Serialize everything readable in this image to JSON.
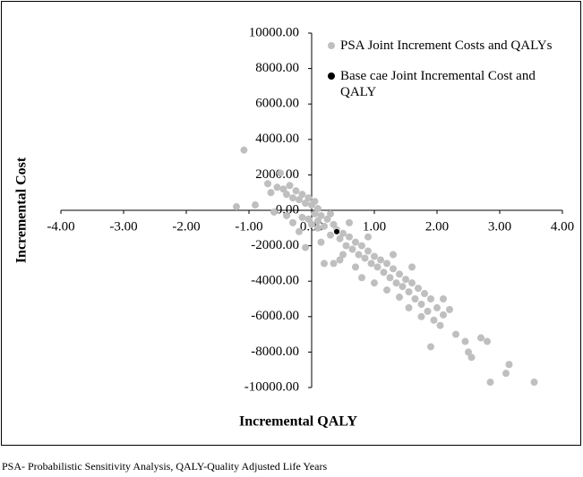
{
  "chart_data": {
    "type": "scatter",
    "xlabel": "Incremental QALY",
    "ylabel": "Incremental Cost",
    "xlim": [
      -4,
      4
    ],
    "ylim": [
      -10000,
      10000
    ],
    "xticks": [
      {
        "value": -4,
        "label": "-4.00"
      },
      {
        "value": -3,
        "label": "-3.00"
      },
      {
        "value": -2,
        "label": "-2.00"
      },
      {
        "value": -1,
        "label": "-1.00"
      },
      {
        "value": 0,
        "label": "0.00"
      },
      {
        "value": 1,
        "label": "1.00"
      },
      {
        "value": 2,
        "label": "2.00"
      },
      {
        "value": 3,
        "label": "3.00"
      },
      {
        "value": 4,
        "label": "4.00"
      }
    ],
    "yticks": [
      {
        "value": 10000,
        "label": "10000.00"
      },
      {
        "value": 8000,
        "label": "8000.00"
      },
      {
        "value": 6000,
        "label": "6000.00"
      },
      {
        "value": 4000,
        "label": "4000.00"
      },
      {
        "value": 2000,
        "label": "2000.00"
      },
      {
        "value": 0,
        "label": "0.00"
      },
      {
        "value": -2000,
        "label": "-2000.00"
      },
      {
        "value": -4000,
        "label": "-4000.00"
      },
      {
        "value": -6000,
        "label": "-6000.00"
      },
      {
        "value": -8000,
        "label": "-8000.00"
      },
      {
        "value": -10000,
        "label": "-10000.00"
      }
    ],
    "series": [
      {
        "name": "PSA Joint Increment Costs and QALYs",
        "color": "#bfbfbf",
        "x": [
          -1.08,
          -1.2,
          -0.9,
          -0.7,
          -0.65,
          -0.55,
          -0.5,
          -0.45,
          -0.4,
          -0.35,
          -0.3,
          -0.25,
          -0.2,
          -0.15,
          -0.1,
          -0.05,
          0.0,
          0.05,
          0.1,
          -0.6,
          -0.4,
          -0.3,
          -0.2,
          -0.1,
          -0.15,
          0.0,
          0.05,
          0.1,
          0.15,
          0.2,
          0.25,
          0.3,
          0.35,
          0.4,
          0.45,
          0.5,
          0.55,
          0.6,
          0.65,
          0.7,
          0.75,
          0.8,
          0.85,
          0.9,
          0.95,
          1.0,
          1.05,
          1.1,
          1.15,
          1.2,
          1.25,
          1.3,
          1.35,
          1.4,
          1.45,
          1.5,
          1.55,
          1.6,
          1.65,
          1.7,
          1.75,
          1.8,
          1.85,
          1.9,
          1.95,
          2.0,
          2.05,
          2.1,
          2.2,
          2.3,
          2.45,
          2.5,
          2.55,
          2.7,
          2.8,
          2.85,
          3.1,
          3.15,
          3.55,
          1.9,
          1.2,
          0.2,
          0.35,
          0.7,
          1.4,
          1.0,
          0.5,
          0.15,
          0.6,
          0.9,
          1.3,
          1.6,
          2.1,
          0.3,
          0.45,
          1.75,
          1.55,
          0.8,
          0.1,
          -0.05
        ],
        "y": [
          3400,
          200,
          300,
          1500,
          1000,
          1300,
          2100,
          1200,
          900,
          1400,
          700,
          1100,
          600,
          900,
          400,
          700,
          300,
          500,
          100,
          -100,
          -300,
          -700,
          -1200,
          -2100,
          -400,
          -800,
          -200,
          -600,
          -300,
          -900,
          -500,
          -1400,
          -800,
          -1100,
          -1600,
          -1300,
          -2000,
          -1500,
          -2200,
          -1800,
          -2500,
          -2000,
          -2700,
          -2300,
          -3000,
          -2600,
          -3200,
          -2800,
          -3500,
          -3000,
          -3800,
          -3300,
          -4100,
          -3600,
          -4300,
          -3900,
          -4600,
          -4100,
          -5000,
          -4400,
          -5300,
          -4700,
          -5700,
          -5000,
          -6200,
          -5500,
          -6500,
          -5900,
          -5600,
          -7000,
          -7400,
          -8000,
          -8300,
          -7200,
          -7400,
          -9700,
          -9200,
          -8700,
          -9700,
          -7700,
          -4500,
          -3000,
          -3000,
          -3200,
          -4900,
          -4100,
          -2500,
          -1800,
          -700,
          -1500,
          -2500,
          -3200,
          -5000,
          -200,
          -2800,
          -6000,
          -5500,
          -3800,
          -1000,
          -500
        ]
      },
      {
        "name": "Base cae Joint Incremental Cost and QALY",
        "color": "#000000",
        "x": [
          0.4
        ],
        "y": [
          -1200
        ]
      }
    ]
  },
  "caption": "PSA- Probabilistic Sensitivity Analysis, QALY-Quality Adjusted Life Years"
}
